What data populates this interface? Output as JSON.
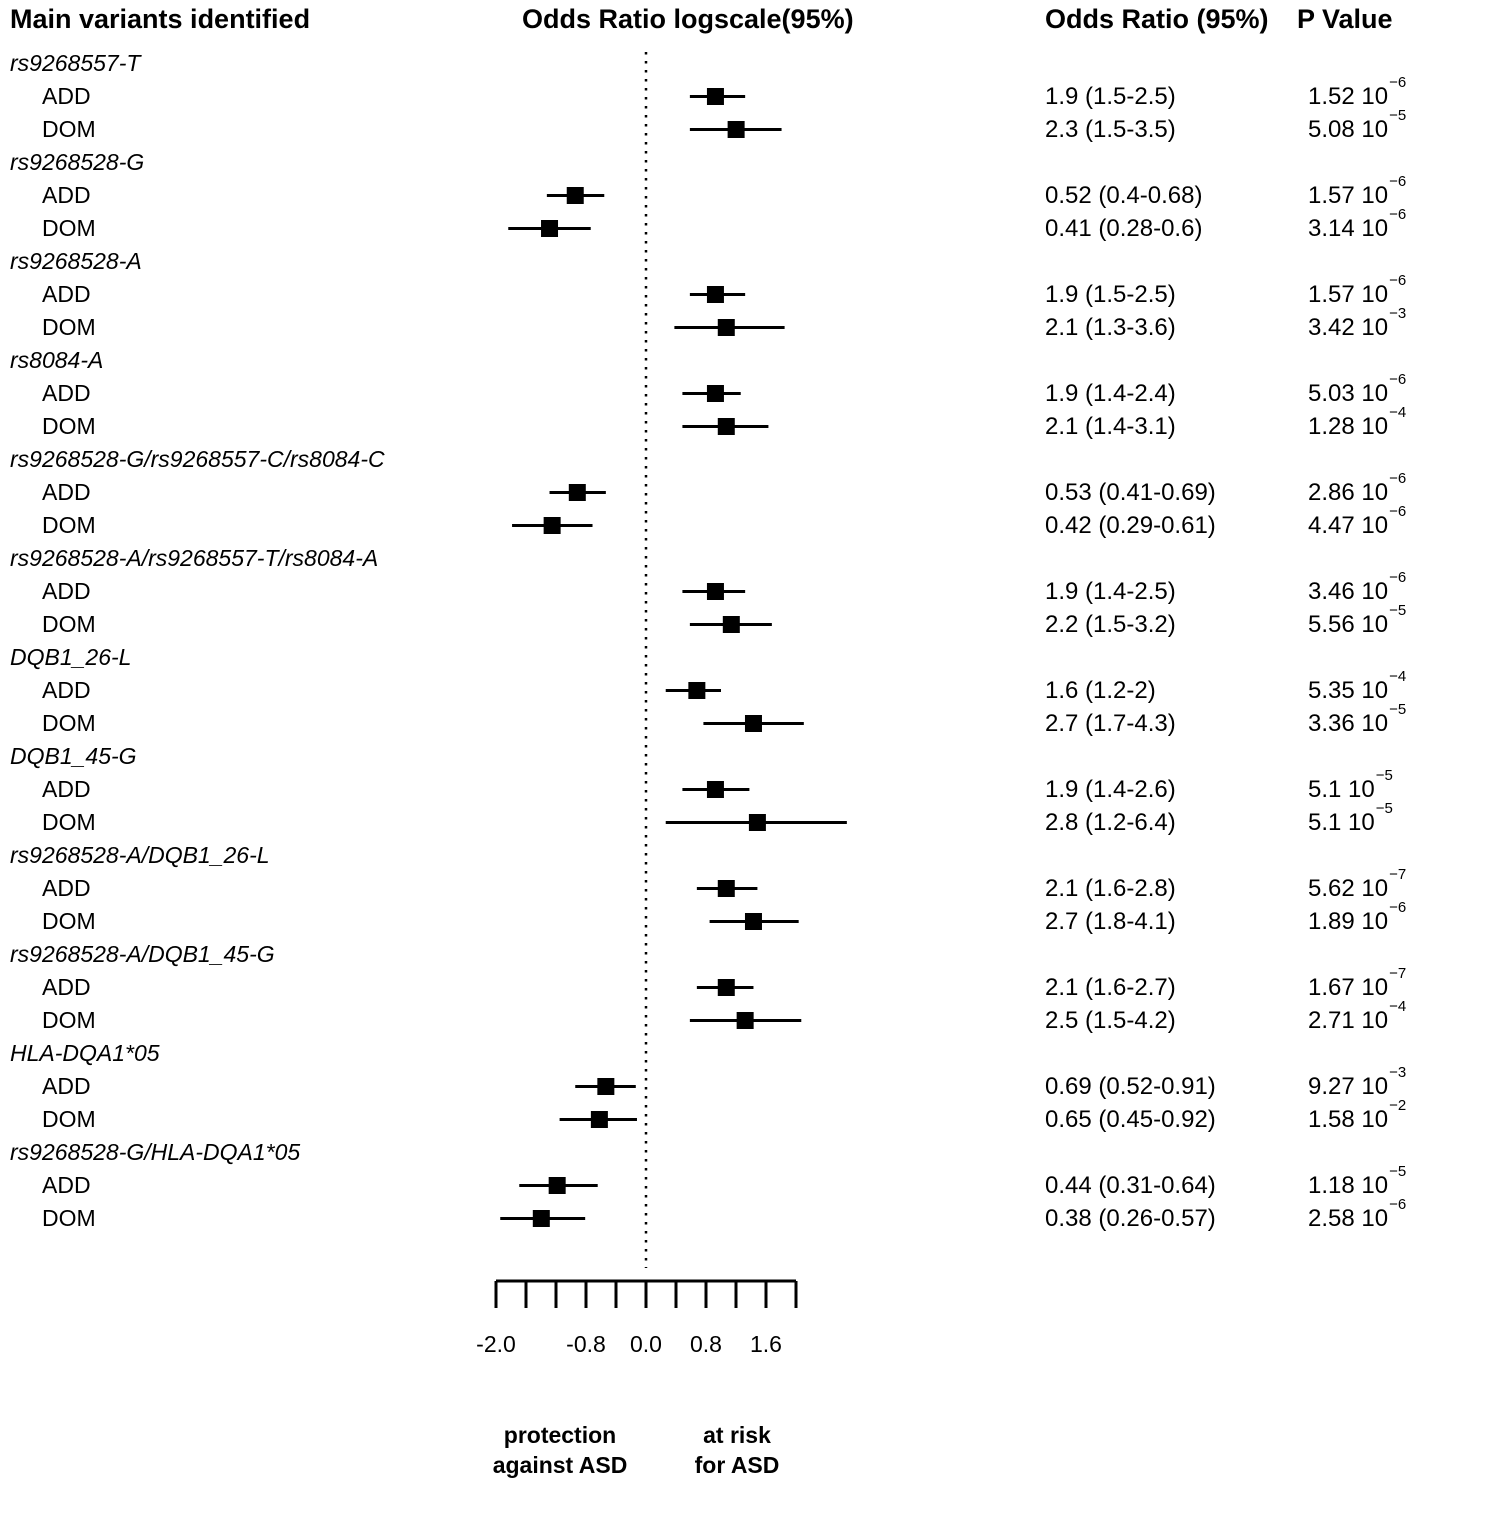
{
  "headers": {
    "variants": "Main variants identified",
    "plot": "Odds Ratio logscale(95%)",
    "odds_ratio": "Odds Ratio (95%)",
    "p_value": "P Value"
  },
  "footer": {
    "protection_line1": "protection",
    "protection_line2": "against ASD",
    "risk_line1": "at risk",
    "risk_line2": "for ASD"
  },
  "chart_data": {
    "type": "forest",
    "x_scale": "log2_odds_ratio",
    "xlim_log": [
      -2,
      2
    ],
    "zero_line_value": 0,
    "grid": false,
    "axis_ticks": [
      -2,
      -1.6,
      -1.2,
      -0.8,
      -0.4,
      0,
      0.4,
      0.8,
      1.2,
      1.6,
      2
    ],
    "axis_labels": [
      {
        "text": "-2.0",
        "value": -2
      },
      {
        "text": "-0.8",
        "value": -0.8
      },
      {
        "text": "0.0",
        "value": 0
      },
      {
        "text": "0.8",
        "value": 0.8
      },
      {
        "text": "1.6",
        "value": 1.6
      }
    ],
    "groups": [
      {
        "variant": "rs9268557-T",
        "rows": [
          {
            "model": "ADD",
            "or": 1.9,
            "ci_low": 1.5,
            "ci_high": 2.5,
            "or_text": "1.9 (1.5-2.5)",
            "p_mantissa": "1.52",
            "p_base": "10",
            "p_exponent": "−6"
          },
          {
            "model": "DOM",
            "or": 2.3,
            "ci_low": 1.5,
            "ci_high": 3.5,
            "or_text": "2.3 (1.5-3.5)",
            "p_mantissa": "5.08",
            "p_base": "10",
            "p_exponent": "−5"
          }
        ]
      },
      {
        "variant": "rs9268528-G",
        "rows": [
          {
            "model": "ADD",
            "or": 0.52,
            "ci_low": 0.4,
            "ci_high": 0.68,
            "or_text": "0.52 (0.4-0.68)",
            "p_mantissa": "1.57",
            "p_base": "10",
            "p_exponent": "−6"
          },
          {
            "model": "DOM",
            "or": 0.41,
            "ci_low": 0.28,
            "ci_high": 0.6,
            "or_text": "0.41 (0.28-0.6)",
            "p_mantissa": "3.14",
            "p_base": "10",
            "p_exponent": "−6"
          }
        ]
      },
      {
        "variant": "rs9268528-A",
        "rows": [
          {
            "model": "ADD",
            "or": 1.9,
            "ci_low": 1.5,
            "ci_high": 2.5,
            "or_text": "1.9 (1.5-2.5)",
            "p_mantissa": "1.57",
            "p_base": "10",
            "p_exponent": "−6"
          },
          {
            "model": "DOM",
            "or": 2.1,
            "ci_low": 1.3,
            "ci_high": 3.6,
            "or_text": "2.1 (1.3-3.6)",
            "p_mantissa": "3.42",
            "p_base": "10",
            "p_exponent": "−3"
          }
        ]
      },
      {
        "variant": "rs8084-A",
        "rows": [
          {
            "model": "ADD",
            "or": 1.9,
            "ci_low": 1.4,
            "ci_high": 2.4,
            "or_text": "1.9 (1.4-2.4)",
            "p_mantissa": "5.03",
            "p_base": "10",
            "p_exponent": "−6"
          },
          {
            "model": "DOM",
            "or": 2.1,
            "ci_low": 1.4,
            "ci_high": 3.1,
            "or_text": "2.1 (1.4-3.1)",
            "p_mantissa": "1.28",
            "p_base": "10",
            "p_exponent": "−4"
          }
        ]
      },
      {
        "variant": "rs9268528-G/rs9268557-C/rs8084-C",
        "rows": [
          {
            "model": "ADD",
            "or": 0.53,
            "ci_low": 0.41,
            "ci_high": 0.69,
            "or_text": "0.53 (0.41-0.69)",
            "p_mantissa": "2.86",
            "p_base": "10",
            "p_exponent": "−6"
          },
          {
            "model": "DOM",
            "or": 0.42,
            "ci_low": 0.29,
            "ci_high": 0.61,
            "or_text": "0.42 (0.29-0.61)",
            "p_mantissa": "4.47",
            "p_base": "10",
            "p_exponent": "−6"
          }
        ]
      },
      {
        "variant": "rs9268528-A/rs9268557-T/rs8084-A",
        "rows": [
          {
            "model": "ADD",
            "or": 1.9,
            "ci_low": 1.4,
            "ci_high": 2.5,
            "or_text": "1.9 (1.4-2.5)",
            "p_mantissa": "3.46",
            "p_base": "10",
            "p_exponent": "−6"
          },
          {
            "model": "DOM",
            "or": 2.2,
            "ci_low": 1.5,
            "ci_high": 3.2,
            "or_text": "2.2 (1.5-3.2)",
            "p_mantissa": "5.56",
            "p_base": "10",
            "p_exponent": "−5"
          }
        ]
      },
      {
        "variant": "DQB1_26-L",
        "rows": [
          {
            "model": "ADD",
            "or": 1.6,
            "ci_low": 1.2,
            "ci_high": 2.0,
            "or_text": "1.6 (1.2-2)",
            "p_mantissa": "5.35",
            "p_base": "10",
            "p_exponent": "−4"
          },
          {
            "model": "DOM",
            "or": 2.7,
            "ci_low": 1.7,
            "ci_high": 4.3,
            "or_text": "2.7 (1.7-4.3)",
            "p_mantissa": "3.36",
            "p_base": "10",
            "p_exponent": "−5"
          }
        ]
      },
      {
        "variant": "DQB1_45-G",
        "rows": [
          {
            "model": "ADD",
            "or": 1.9,
            "ci_low": 1.4,
            "ci_high": 2.6,
            "or_text": "1.9 (1.4-2.6)",
            "p_mantissa": "5.1",
            "p_base": "10",
            "p_exponent": "−5"
          },
          {
            "model": "DOM",
            "or": 2.8,
            "ci_low": 1.2,
            "ci_high": 6.4,
            "or_text": "2.8 (1.2-6.4)",
            "p_mantissa": "5.1",
            "p_base": "10",
            "p_exponent": "−5"
          }
        ]
      },
      {
        "variant": "rs9268528-A/DQB1_26-L",
        "rows": [
          {
            "model": "ADD",
            "or": 2.1,
            "ci_low": 1.6,
            "ci_high": 2.8,
            "or_text": "2.1 (1.6-2.8)",
            "p_mantissa": "5.62",
            "p_base": "10",
            "p_exponent": "−7"
          },
          {
            "model": "DOM",
            "or": 2.7,
            "ci_low": 1.8,
            "ci_high": 4.1,
            "or_text": "2.7 (1.8-4.1)",
            "p_mantissa": "1.89",
            "p_base": "10",
            "p_exponent": "−6"
          }
        ]
      },
      {
        "variant": "rs9268528-A/DQB1_45-G",
        "rows": [
          {
            "model": "ADD",
            "or": 2.1,
            "ci_low": 1.6,
            "ci_high": 2.7,
            "or_text": "2.1 (1.6-2.7)",
            "p_mantissa": "1.67",
            "p_base": "10",
            "p_exponent": "−7"
          },
          {
            "model": "DOM",
            "or": 2.5,
            "ci_low": 1.5,
            "ci_high": 4.2,
            "or_text": "2.5 (1.5-4.2)",
            "p_mantissa": "2.71",
            "p_base": "10",
            "p_exponent": "−4"
          }
        ]
      },
      {
        "variant": "HLA-DQA1*05",
        "rows": [
          {
            "model": "ADD",
            "or": 0.69,
            "ci_low": 0.52,
            "ci_high": 0.91,
            "or_text": "0.69 (0.52-0.91)",
            "p_mantissa": "9.27",
            "p_base": "10",
            "p_exponent": "−3"
          },
          {
            "model": "DOM",
            "or": 0.65,
            "ci_low": 0.45,
            "ci_high": 0.92,
            "or_text": "0.65 (0.45-0.92)",
            "p_mantissa": "1.58",
            "p_base": "10",
            "p_exponent": "−2"
          }
        ]
      },
      {
        "variant": "rs9268528-G/HLA-DQA1*05",
        "rows": [
          {
            "model": "ADD",
            "or": 0.44,
            "ci_low": 0.31,
            "ci_high": 0.64,
            "or_text": "0.44 (0.31-0.64)",
            "p_mantissa": "1.18",
            "p_base": "10",
            "p_exponent": "−5"
          },
          {
            "model": "DOM",
            "or": 0.38,
            "ci_low": 0.26,
            "ci_high": 0.57,
            "or_text": "0.38 (0.26-0.57)",
            "p_mantissa": "2.58",
            "p_base": "10",
            "p_exponent": "−6"
          }
        ]
      }
    ]
  }
}
